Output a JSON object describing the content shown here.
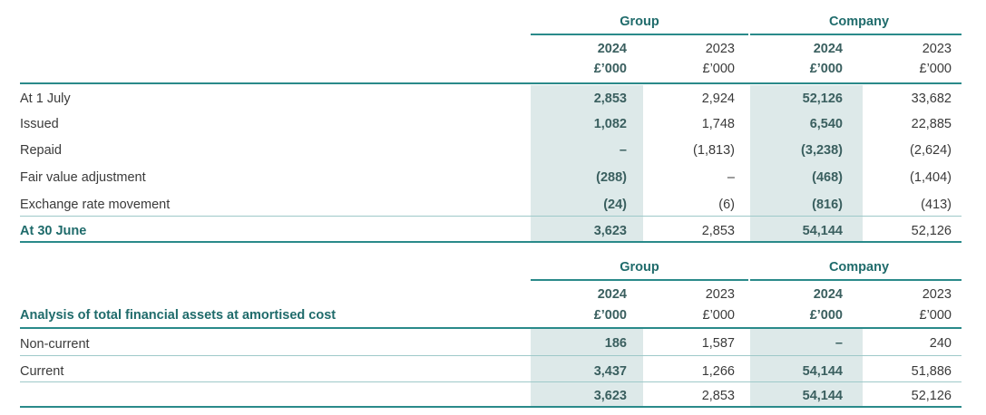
{
  "table1": {
    "group_label": "Group",
    "company_label": "Company",
    "years": [
      "2024",
      "2023",
      "2024",
      "2023"
    ],
    "units": [
      "£’000",
      "£’000",
      "£’000",
      "£’000"
    ],
    "rows": [
      {
        "label": "At 1 July",
        "values": [
          "2,853",
          "2,924",
          "52,126",
          "33,682"
        ]
      },
      {
        "label": "Issued",
        "values": [
          "1,082",
          "1,748",
          "6,540",
          "22,885"
        ]
      },
      {
        "label": "Repaid",
        "values": [
          "–",
          "(1,813)",
          "(3,238)",
          "(2,624)"
        ]
      },
      {
        "label": "Fair value adjustment",
        "values": [
          "(288)",
          "–",
          "(468)",
          "(1,404)"
        ]
      },
      {
        "label": "Exchange rate movement",
        "values": [
          "(24)",
          "(6)",
          "(816)",
          "(413)"
        ]
      },
      {
        "label": "At 30 June",
        "values": [
          "3,623",
          "2,853",
          "54,144",
          "52,126"
        ]
      }
    ]
  },
  "table2": {
    "title": "Analysis of total financial assets at amortised cost",
    "group_label": "Group",
    "company_label": "Company",
    "years": [
      "2024",
      "2023",
      "2024",
      "2023"
    ],
    "units": [
      "£’000",
      "£’000",
      "£’000",
      "£’000"
    ],
    "rows": [
      {
        "label": "Non-current",
        "values": [
          "186",
          "1,587",
          "–",
          "240"
        ]
      },
      {
        "label": "Current",
        "values": [
          "3,437",
          "1,266",
          "54,144",
          "51,886"
        ]
      },
      {
        "label": "",
        "values": [
          "3,623",
          "2,853",
          "54,144",
          "52,126"
        ]
      }
    ]
  }
}
